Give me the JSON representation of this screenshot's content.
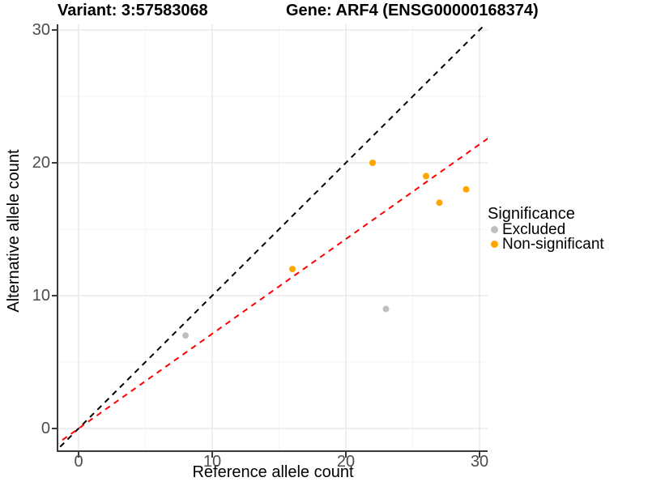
{
  "chart_data": {
    "type": "scatter",
    "titles": {
      "left": "Variant: 3:57583068",
      "right": "Gene: ARF4 (ENSG00000168374)"
    },
    "xlabel": "Reference allele count",
    "ylabel": "Alternative allele count",
    "xlim": [
      -1.5,
      30.6
    ],
    "ylim": [
      -1.7,
      30.4
    ],
    "x_ticks": [
      0,
      10,
      20,
      30
    ],
    "y_ticks": [
      0,
      10,
      20,
      30
    ],
    "x_minor_ticks": [
      5,
      15,
      25
    ],
    "y_minor_ticks": [
      5,
      15,
      25
    ],
    "grid": "on",
    "series": [
      {
        "name": "Excluded",
        "color": "#bebebe",
        "points": [
          [
            8,
            7
          ],
          [
            23,
            9
          ]
        ]
      },
      {
        "name": "Non-significant",
        "color": "#ffa500",
        "points": [
          [
            16,
            12
          ],
          [
            22,
            20
          ],
          [
            26,
            19
          ],
          [
            27,
            17
          ],
          [
            29,
            18
          ]
        ]
      }
    ],
    "lines": [
      {
        "name": "identity-line",
        "slope": 1,
        "intercept": 0,
        "color": "#000000",
        "style": "dashed"
      },
      {
        "name": "fit-line",
        "slope": 0.713,
        "intercept": 0,
        "color": "#ff0000",
        "style": "dashed"
      }
    ],
    "legend": {
      "title": "Significance",
      "position": "right",
      "items": [
        {
          "label": "Excluded",
          "color": "#bebebe"
        },
        {
          "label": "Non-significant",
          "color": "#ffa500"
        }
      ]
    },
    "colors": {
      "grid_major": "#e9e9e9",
      "grid_minor": "#f5f5f5",
      "axis_line": "#3a3a3a",
      "tick_text": "#4d4d4d"
    }
  }
}
